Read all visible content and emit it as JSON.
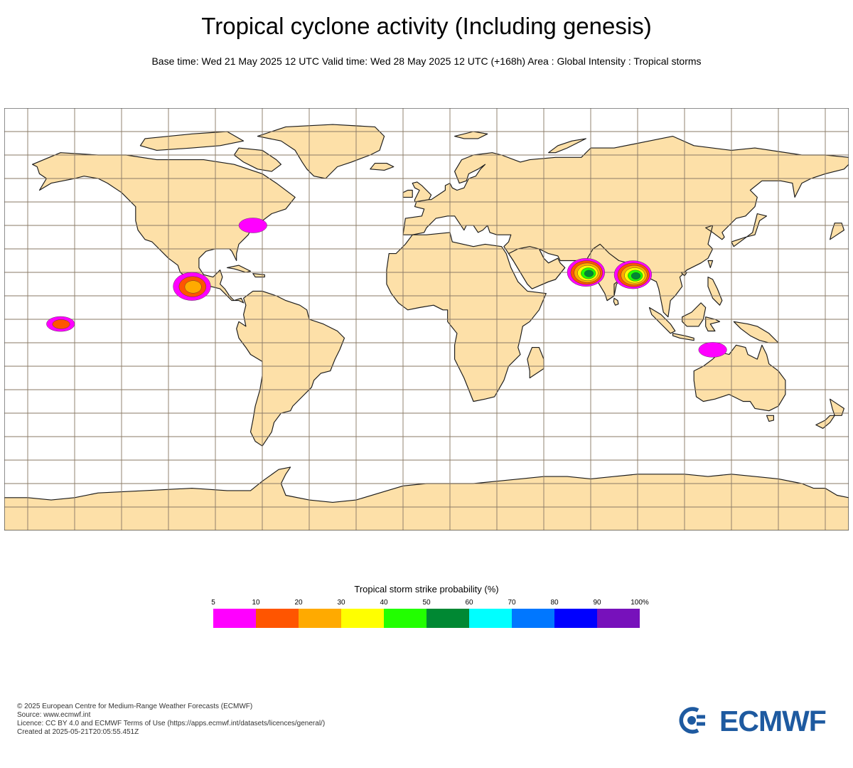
{
  "header": {
    "title": "Tropical cyclone activity (Including genesis)",
    "subtitle": "Base time: Wed 21 May 2025 12 UTC Valid time: Wed 28 May 2025 12 UTC (+168h) Area : Global Intensity : Tropical storms"
  },
  "colors": {
    "land": "#fde0a8",
    "ocean": "#ffffff",
    "grid": "#8a7a66",
    "coast": "#1a1a1a"
  },
  "legend": {
    "title": "Tropical storm strike probability (%)",
    "ticks": [
      "5",
      "10",
      "20",
      "30",
      "40",
      "50",
      "60",
      "70",
      "80",
      "90",
      "100%"
    ],
    "bins": [
      {
        "from": 5,
        "to": 10,
        "color": "#ff00ff"
      },
      {
        "from": 10,
        "to": 20,
        "color": "#ff5500"
      },
      {
        "from": 20,
        "to": 30,
        "color": "#ffaa00"
      },
      {
        "from": 30,
        "to": 40,
        "color": "#ffff00"
      },
      {
        "from": 40,
        "to": 50,
        "color": "#22ff00"
      },
      {
        "from": 50,
        "to": 60,
        "color": "#008833"
      },
      {
        "from": 60,
        "to": 70,
        "color": "#00ffff"
      },
      {
        "from": 70,
        "to": 80,
        "color": "#0077ff"
      },
      {
        "from": 80,
        "to": 90,
        "color": "#0000ff"
      },
      {
        "from": 90,
        "to": 100,
        "color": "#7711bb"
      }
    ]
  },
  "storm_areas": [
    {
      "region": "US East Coast",
      "lon": -74,
      "lat": 40,
      "max_prob": 10
    },
    {
      "region": "Eastern Pacific (off Mexico)",
      "lon": -100,
      "lat": 14,
      "max_prob": 30
    },
    {
      "region": "Central Pacific (Hawaii)",
      "lon": -156,
      "lat": -2,
      "max_prob": 20
    },
    {
      "region": "Arabian Sea",
      "lon": 68,
      "lat": 20,
      "max_prob": 60
    },
    {
      "region": "Bay of Bengal",
      "lon": 88,
      "lat": 19,
      "max_prob": 60
    },
    {
      "region": "NW Australia",
      "lon": 122,
      "lat": -13,
      "max_prob": 10
    }
  ],
  "footer": {
    "copyright": "© 2025 European Centre for Medium-Range Weather Forecasts (ECMWF)",
    "source": "Source: www.ecmwf.int",
    "licence": "Licence: CC BY 4.0 and ECMWF Terms of Use (https://apps.ecmwf.int/datasets/licences/general/)",
    "created": "Created at 2025-05-21T20:05:55.451Z"
  },
  "logo": {
    "text": "ECMWF",
    "color": "#1e5aa0"
  }
}
